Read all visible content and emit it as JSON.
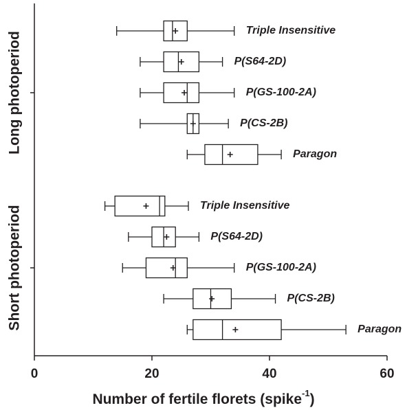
{
  "chart_data": {
    "type": "boxplot",
    "xlabel": {
      "text": "Number of fertile florets (spike",
      "superscript": "-1",
      "suffix": ")"
    },
    "xlim": [
      0,
      60
    ],
    "xticks": [
      0,
      20,
      40,
      60
    ],
    "color": "#231f20",
    "groups": [
      {
        "name": "Long photoperiod",
        "boxes": [
          {
            "label": "Triple Insensitive",
            "min": 14,
            "q1": 22,
            "median": 23.5,
            "q3": 26,
            "max": 34,
            "mean": 24
          },
          {
            "label": "P(S64-2D)",
            "min": 18,
            "q1": 22,
            "median": 24.5,
            "q3": 28,
            "max": 32,
            "mean": 25
          },
          {
            "label": "P(GS-100-2A)",
            "min": 18,
            "q1": 22,
            "median": 26,
            "q3": 28,
            "max": 34,
            "mean": 25.5
          },
          {
            "label": "P(CS-2B)",
            "min": 18,
            "q1": 26,
            "median": 27,
            "q3": 28,
            "max": 33,
            "mean": 27
          },
          {
            "label": "Paragon",
            "min": 26,
            "q1": 29,
            "median": 32,
            "q3": 38,
            "max": 42,
            "mean": 33.3
          }
        ]
      },
      {
        "name": "Short photoperiod",
        "boxes": [
          {
            "label": "Triple Insensitive",
            "min": 12,
            "q1": 13.7,
            "median": 21.3,
            "q3": 22.2,
            "max": 26.2,
            "mean": 19
          },
          {
            "label": "P(S64-2D)",
            "min": 16,
            "q1": 20,
            "median": 22,
            "q3": 24,
            "max": 28,
            "mean": 22.5
          },
          {
            "label": "P(GS-100-2A)",
            "min": 15,
            "q1": 19,
            "median": 24,
            "q3": 26,
            "max": 34,
            "mean": 23.6
          },
          {
            "label": "P(CS-2B)",
            "min": 22,
            "q1": 27,
            "median": 30,
            "q3": 33.5,
            "max": 41,
            "mean": 30.2
          },
          {
            "label": "Paragon",
            "min": 26,
            "q1": 27,
            "median": 32,
            "q3": 42,
            "max": 53,
            "mean": 34.2
          }
        ]
      }
    ]
  }
}
